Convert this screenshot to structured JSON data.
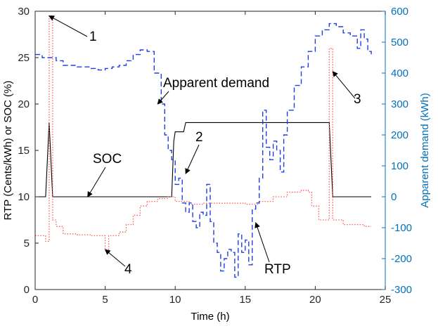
{
  "chart_data": {
    "type": "line",
    "title": "",
    "xlabel": "Time (h)",
    "ylabel_left": "RTP (Cents/kWh) or SOC (%)",
    "ylabel_right": "Apparent demand (kWh)",
    "xlim": [
      0,
      25
    ],
    "ylim_left": [
      0,
      30
    ],
    "ylim_right": [
      -300,
      600
    ],
    "x_ticks": [
      0,
      5,
      10,
      15,
      20,
      25
    ],
    "y_left_ticks": [
      0,
      5,
      10,
      15,
      20,
      25,
      30
    ],
    "y_right_ticks": [
      -300,
      -200,
      -100,
      0,
      100,
      200,
      300,
      400,
      500,
      600
    ],
    "grid": false,
    "colors": {
      "rtp": "#ff5a5a",
      "soc": "#000000",
      "demand": "#1f3fe0",
      "right_axis": "#0072bd"
    },
    "series": [
      {
        "name": "SOC",
        "axis": "left",
        "style": "solid",
        "points": [
          [
            0,
            10
          ],
          [
            0.75,
            10
          ],
          [
            1.0,
            18
          ],
          [
            1.25,
            10
          ],
          [
            9.75,
            10
          ],
          [
            9.9,
            16
          ],
          [
            10.0,
            17
          ],
          [
            10.6,
            17
          ],
          [
            10.75,
            18
          ],
          [
            21.0,
            18
          ],
          [
            21.25,
            10
          ],
          [
            24,
            10
          ]
        ]
      },
      {
        "name": "RTP",
        "axis": "left",
        "style": "step-dotted",
        "points": [
          [
            0,
            5.8
          ],
          [
            0.5,
            5.8
          ],
          [
            0.75,
            5.2
          ],
          [
            1.0,
            29.5
          ],
          [
            1.25,
            7.5
          ],
          [
            1.5,
            6.8
          ],
          [
            2,
            6.0
          ],
          [
            3,
            5.9
          ],
          [
            4,
            5.8
          ],
          [
            4.8,
            5.8
          ],
          [
            5.0,
            4.3
          ],
          [
            5.25,
            5.8
          ],
          [
            6,
            6.2
          ],
          [
            6.5,
            7.0
          ],
          [
            7,
            8.0
          ],
          [
            7.5,
            9.0
          ],
          [
            8,
            9.5
          ],
          [
            8.75,
            9.8
          ],
          [
            9.5,
            10.0
          ],
          [
            10,
            9.5
          ],
          [
            11,
            9.2
          ],
          [
            12,
            9.3
          ],
          [
            13,
            9.3
          ],
          [
            14,
            9.3
          ],
          [
            15,
            9.2
          ],
          [
            16,
            9.5
          ],
          [
            17,
            10.0
          ],
          [
            18,
            10.5
          ],
          [
            19,
            10.7
          ],
          [
            19.5,
            10.5
          ],
          [
            19.75,
            9.0
          ],
          [
            20.25,
            7.5
          ],
          [
            21,
            26.0
          ],
          [
            21.25,
            7.5
          ],
          [
            22,
            7.0
          ],
          [
            23,
            7.0
          ],
          [
            23.5,
            6.8
          ],
          [
            24,
            6.8
          ]
        ]
      },
      {
        "name": "Apparent demand",
        "axis": "right",
        "style": "step-dashed",
        "points": [
          [
            0,
            460
          ],
          [
            0.5,
            450
          ],
          [
            1,
            450
          ],
          [
            1.5,
            440
          ],
          [
            2,
            425
          ],
          [
            3,
            420
          ],
          [
            4,
            415
          ],
          [
            4.5,
            410
          ],
          [
            5,
            415
          ],
          [
            5.5,
            420
          ],
          [
            6,
            425
          ],
          [
            6.5,
            440
          ],
          [
            7,
            460
          ],
          [
            7.5,
            475
          ],
          [
            8,
            470
          ],
          [
            8.5,
            400
          ],
          [
            9,
            300
          ],
          [
            9.25,
            200
          ],
          [
            9.5,
            150
          ],
          [
            9.75,
            120
          ],
          [
            10,
            40
          ],
          [
            10.25,
            60
          ],
          [
            10.5,
            -20
          ],
          [
            10.75,
            -50
          ],
          [
            11,
            -20
          ],
          [
            11.25,
            -80
          ],
          [
            11.5,
            -100
          ],
          [
            11.75,
            -50
          ],
          [
            12,
            -60
          ],
          [
            12.25,
            40
          ],
          [
            12.5,
            -80
          ],
          [
            12.75,
            -150
          ],
          [
            13,
            -180
          ],
          [
            13.25,
            -240
          ],
          [
            13.5,
            -200
          ],
          [
            13.75,
            -170
          ],
          [
            14,
            -180
          ],
          [
            14.25,
            -260
          ],
          [
            14.5,
            -120
          ],
          [
            14.75,
            -180
          ],
          [
            15,
            -140
          ],
          [
            15.25,
            -220
          ],
          [
            15.5,
            -40
          ],
          [
            15.75,
            -20
          ],
          [
            16,
            60
          ],
          [
            16.25,
            280
          ],
          [
            16.5,
            160
          ],
          [
            16.75,
            120
          ],
          [
            17,
            180
          ],
          [
            17.25,
            150
          ],
          [
            17.5,
            80
          ],
          [
            17.75,
            200
          ],
          [
            18,
            280
          ],
          [
            18.5,
            360
          ],
          [
            19,
            420
          ],
          [
            19.5,
            470
          ],
          [
            20,
            520
          ],
          [
            20.5,
            540
          ],
          [
            21,
            560
          ],
          [
            21.5,
            550
          ],
          [
            22,
            530
          ],
          [
            22.5,
            520
          ],
          [
            23,
            480
          ],
          [
            23.25,
            540
          ],
          [
            23.5,
            510
          ],
          [
            23.75,
            470
          ],
          [
            24,
            460
          ]
        ]
      }
    ],
    "annotations": [
      {
        "text": "1",
        "target": [
          1.0,
          29.5
        ],
        "axis": "left"
      },
      {
        "text": "Apparent demand",
        "target": [
          8.75,
          300
        ],
        "axis": "right"
      },
      {
        "text": "2",
        "target": [
          10.75,
          12.5
        ],
        "axis": "left"
      },
      {
        "text": "3",
        "target": [
          21.25,
          23.5
        ],
        "axis": "left"
      },
      {
        "text": "SOC",
        "target": [
          3.75,
          10.0
        ],
        "axis": "left"
      },
      {
        "text": "4",
        "target": [
          5.0,
          4.3
        ],
        "axis": "left"
      },
      {
        "text": "RTP",
        "target": [
          15.75,
          7.2
        ],
        "axis": "left"
      }
    ]
  }
}
